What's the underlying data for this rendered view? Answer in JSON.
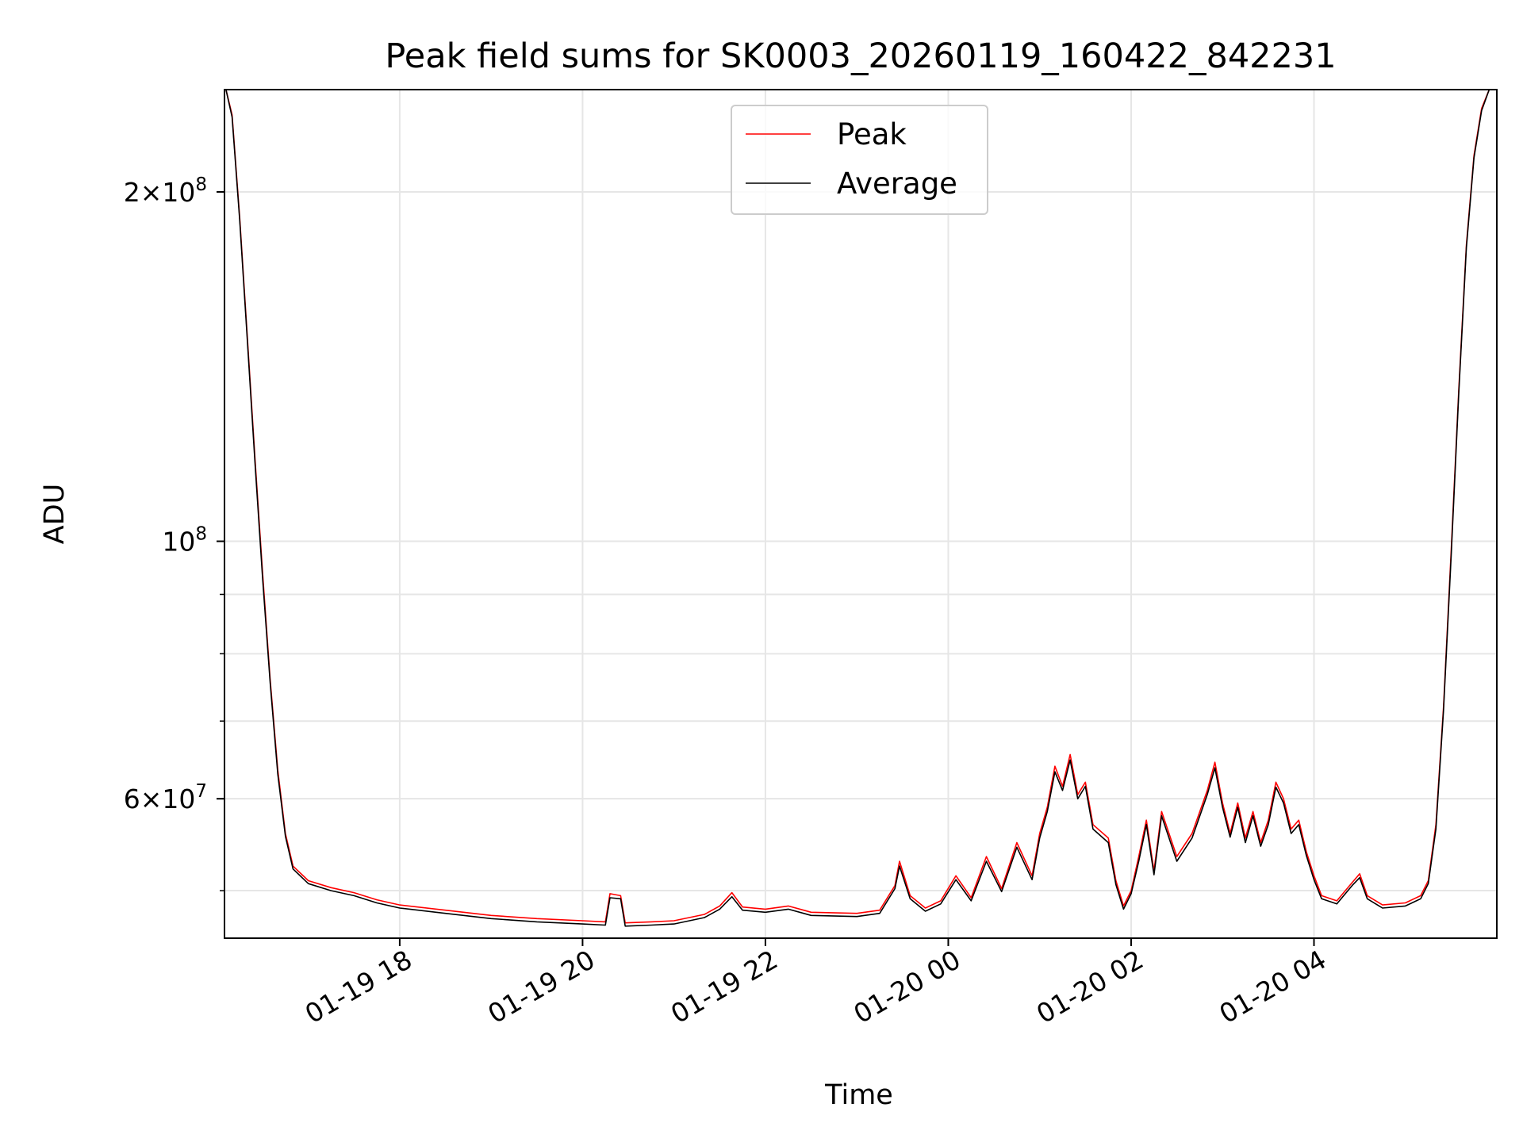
{
  "chart_data": {
    "type": "line",
    "title": "Peak field sums for SK0003_20260119_160422_842231",
    "xlabel": "Time",
    "ylabel": "ADU",
    "yscale": "log",
    "ylim": [
      45500000,
      245000000
    ],
    "xlim": [
      "2026-01-19 16:05",
      "2026-01-20 06:00"
    ],
    "grid": true,
    "legend_position": "upper center",
    "x_ticks": [
      {
        "value": "2026-01-19 18:00",
        "label": "01-19 18"
      },
      {
        "value": "2026-01-19 20:00",
        "label": "01-19 20"
      },
      {
        "value": "2026-01-19 22:00",
        "label": "01-19 22"
      },
      {
        "value": "2026-01-20 00:00",
        "label": "01-20 00"
      },
      {
        "value": "2026-01-20 02:00",
        "label": "01-20 02"
      },
      {
        "value": "2026-01-20 04:00",
        "label": "01-20 04"
      }
    ],
    "y_ticks": [
      {
        "value": 60000000,
        "base": "6",
        "exponent": "7"
      },
      {
        "value": 100000000,
        "base": "",
        "exponent": "8"
      },
      {
        "value": 200000000,
        "base": "2",
        "exponent": "8"
      }
    ],
    "y_minor_ticks": [
      50000000,
      70000000,
      80000000,
      90000000,
      300000000
    ],
    "series": [
      {
        "name": "Peak",
        "color": "#ff0000",
        "points": [
          [
            "2026-01-19 16:06",
            245000000
          ],
          [
            "2026-01-19 16:10",
            233000000
          ],
          [
            "2026-01-19 16:15",
            190000000
          ],
          [
            "2026-01-19 16:20",
            150000000
          ],
          [
            "2026-01-19 16:25",
            118000000
          ],
          [
            "2026-01-19 16:30",
            94000000
          ],
          [
            "2026-01-19 16:35",
            76000000
          ],
          [
            "2026-01-19 16:40",
            63500000
          ],
          [
            "2026-01-19 16:45",
            56000000
          ],
          [
            "2026-01-19 16:50",
            52500000
          ],
          [
            "2026-01-19 17:00",
            51000000
          ],
          [
            "2026-01-19 17:15",
            50300000
          ],
          [
            "2026-01-19 17:30",
            49800000
          ],
          [
            "2026-01-19 17:45",
            49100000
          ],
          [
            "2026-01-19 18:00",
            48600000
          ],
          [
            "2026-01-19 18:30",
            48100000
          ],
          [
            "2026-01-19 19:00",
            47600000
          ],
          [
            "2026-01-19 19:30",
            47300000
          ],
          [
            "2026-01-19 20:00",
            47100000
          ],
          [
            "2026-01-19 20:15",
            47000000
          ],
          [
            "2026-01-19 20:18",
            49700000
          ],
          [
            "2026-01-19 20:25",
            49500000
          ],
          [
            "2026-01-19 20:28",
            46900000
          ],
          [
            "2026-01-19 20:45",
            47000000
          ],
          [
            "2026-01-19 21:00",
            47100000
          ],
          [
            "2026-01-19 21:20",
            47700000
          ],
          [
            "2026-01-19 21:30",
            48500000
          ],
          [
            "2026-01-19 21:38",
            49800000
          ],
          [
            "2026-01-19 21:45",
            48400000
          ],
          [
            "2026-01-19 22:00",
            48200000
          ],
          [
            "2026-01-19 22:15",
            48500000
          ],
          [
            "2026-01-19 22:30",
            47900000
          ],
          [
            "2026-01-19 23:00",
            47800000
          ],
          [
            "2026-01-19 23:15",
            48100000
          ],
          [
            "2026-01-19 23:25",
            50500000
          ],
          [
            "2026-01-19 23:28",
            53000000
          ],
          [
            "2026-01-19 23:35",
            49500000
          ],
          [
            "2026-01-19 23:45",
            48300000
          ],
          [
            "2026-01-19 23:55",
            49000000
          ],
          [
            "2026-01-20 00:05",
            51500000
          ],
          [
            "2026-01-20 00:15",
            49300000
          ],
          [
            "2026-01-20 00:25",
            53500000
          ],
          [
            "2026-01-20 00:35",
            50200000
          ],
          [
            "2026-01-20 00:45",
            55000000
          ],
          [
            "2026-01-20 00:55",
            51500000
          ],
          [
            "2026-01-20 01:00",
            56000000
          ],
          [
            "2026-01-20 01:05",
            59000000
          ],
          [
            "2026-01-20 01:10",
            64000000
          ],
          [
            "2026-01-20 01:15",
            61500000
          ],
          [
            "2026-01-20 01:20",
            65500000
          ],
          [
            "2026-01-20 01:25",
            60500000
          ],
          [
            "2026-01-20 01:30",
            62000000
          ],
          [
            "2026-01-20 01:35",
            57000000
          ],
          [
            "2026-01-20 01:45",
            55500000
          ],
          [
            "2026-01-20 01:50",
            51000000
          ],
          [
            "2026-01-20 01:55",
            48500000
          ],
          [
            "2026-01-20 02:00",
            50000000
          ],
          [
            "2026-01-20 02:05",
            53500000
          ],
          [
            "2026-01-20 02:10",
            57500000
          ],
          [
            "2026-01-20 02:15",
            52000000
          ],
          [
            "2026-01-20 02:20",
            58500000
          ],
          [
            "2026-01-20 02:30",
            53500000
          ],
          [
            "2026-01-20 02:40",
            56000000
          ],
          [
            "2026-01-20 02:50",
            61000000
          ],
          [
            "2026-01-20 02:55",
            64500000
          ],
          [
            "2026-01-20 03:00",
            59500000
          ],
          [
            "2026-01-20 03:05",
            56000000
          ],
          [
            "2026-01-20 03:10",
            59500000
          ],
          [
            "2026-01-20 03:15",
            55500000
          ],
          [
            "2026-01-20 03:20",
            58500000
          ],
          [
            "2026-01-20 03:25",
            55000000
          ],
          [
            "2026-01-20 03:30",
            57500000
          ],
          [
            "2026-01-20 03:35",
            62000000
          ],
          [
            "2026-01-20 03:40",
            60000000
          ],
          [
            "2026-01-20 03:45",
            56500000
          ],
          [
            "2026-01-20 03:50",
            57500000
          ],
          [
            "2026-01-20 03:55",
            54000000
          ],
          [
            "2026-01-20 04:00",
            51500000
          ],
          [
            "2026-01-20 04:05",
            49500000
          ],
          [
            "2026-01-20 04:15",
            49000000
          ],
          [
            "2026-01-20 04:25",
            50800000
          ],
          [
            "2026-01-20 04:30",
            51700000
          ],
          [
            "2026-01-20 04:35",
            49500000
          ],
          [
            "2026-01-20 04:45",
            48600000
          ],
          [
            "2026-01-20 05:00",
            48800000
          ],
          [
            "2026-01-20 05:10",
            49500000
          ],
          [
            "2026-01-20 05:15",
            51000000
          ],
          [
            "2026-01-20 05:20",
            57000000
          ],
          [
            "2026-01-20 05:25",
            72000000
          ],
          [
            "2026-01-20 05:30",
            98000000
          ],
          [
            "2026-01-20 05:35",
            135000000
          ],
          [
            "2026-01-20 05:40",
            180000000
          ],
          [
            "2026-01-20 05:45",
            215000000
          ],
          [
            "2026-01-20 05:50",
            236000000
          ],
          [
            "2026-01-20 05:55",
            245000000
          ]
        ]
      },
      {
        "name": "Average",
        "color": "#000000",
        "points": [
          [
            "2026-01-19 16:06",
            245000000
          ],
          [
            "2026-01-19 16:10",
            232000000
          ],
          [
            "2026-01-19 16:15",
            189000000
          ],
          [
            "2026-01-19 16:20",
            149000000
          ],
          [
            "2026-01-19 16:25",
            117000000
          ],
          [
            "2026-01-19 16:30",
            93000000
          ],
          [
            "2026-01-19 16:35",
            75500000
          ],
          [
            "2026-01-19 16:40",
            63000000
          ],
          [
            "2026-01-19 16:45",
            55700000
          ],
          [
            "2026-01-19 16:50",
            52200000
          ],
          [
            "2026-01-19 17:00",
            50700000
          ],
          [
            "2026-01-19 17:15",
            50000000
          ],
          [
            "2026-01-19 17:30",
            49500000
          ],
          [
            "2026-01-19 17:45",
            48800000
          ],
          [
            "2026-01-19 18:00",
            48300000
          ],
          [
            "2026-01-19 18:30",
            47800000
          ],
          [
            "2026-01-19 19:00",
            47300000
          ],
          [
            "2026-01-19 19:30",
            47000000
          ],
          [
            "2026-01-19 20:00",
            46800000
          ],
          [
            "2026-01-19 20:15",
            46700000
          ],
          [
            "2026-01-19 20:18",
            49300000
          ],
          [
            "2026-01-19 20:25",
            49200000
          ],
          [
            "2026-01-19 20:28",
            46600000
          ],
          [
            "2026-01-19 20:45",
            46700000
          ],
          [
            "2026-01-19 21:00",
            46800000
          ],
          [
            "2026-01-19 21:20",
            47400000
          ],
          [
            "2026-01-19 21:30",
            48200000
          ],
          [
            "2026-01-19 21:38",
            49400000
          ],
          [
            "2026-01-19 21:45",
            48100000
          ],
          [
            "2026-01-19 22:00",
            47900000
          ],
          [
            "2026-01-19 22:15",
            48200000
          ],
          [
            "2026-01-19 22:30",
            47600000
          ],
          [
            "2026-01-19 23:00",
            47500000
          ],
          [
            "2026-01-19 23:15",
            47800000
          ],
          [
            "2026-01-19 23:25",
            50200000
          ],
          [
            "2026-01-19 23:28",
            52500000
          ],
          [
            "2026-01-19 23:35",
            49200000
          ],
          [
            "2026-01-19 23:45",
            48000000
          ],
          [
            "2026-01-19 23:55",
            48700000
          ],
          [
            "2026-01-20 00:05",
            51100000
          ],
          [
            "2026-01-20 00:15",
            49000000
          ],
          [
            "2026-01-20 00:25",
            53000000
          ],
          [
            "2026-01-20 00:35",
            49900000
          ],
          [
            "2026-01-20 00:45",
            54500000
          ],
          [
            "2026-01-20 00:55",
            51100000
          ],
          [
            "2026-01-20 01:00",
            55500000
          ],
          [
            "2026-01-20 01:05",
            58500000
          ],
          [
            "2026-01-20 01:10",
            63300000
          ],
          [
            "2026-01-20 01:15",
            61000000
          ],
          [
            "2026-01-20 01:20",
            64800000
          ],
          [
            "2026-01-20 01:25",
            60000000
          ],
          [
            "2026-01-20 01:30",
            61500000
          ],
          [
            "2026-01-20 01:35",
            56500000
          ],
          [
            "2026-01-20 01:45",
            55000000
          ],
          [
            "2026-01-20 01:50",
            50600000
          ],
          [
            "2026-01-20 01:55",
            48200000
          ],
          [
            "2026-01-20 02:00",
            49700000
          ],
          [
            "2026-01-20 02:05",
            53000000
          ],
          [
            "2026-01-20 02:10",
            57000000
          ],
          [
            "2026-01-20 02:15",
            51600000
          ],
          [
            "2026-01-20 02:20",
            58000000
          ],
          [
            "2026-01-20 02:30",
            53000000
          ],
          [
            "2026-01-20 02:40",
            55500000
          ],
          [
            "2026-01-20 02:50",
            60500000
          ],
          [
            "2026-01-20 02:55",
            63800000
          ],
          [
            "2026-01-20 03:00",
            59000000
          ],
          [
            "2026-01-20 03:05",
            55600000
          ],
          [
            "2026-01-20 03:10",
            59000000
          ],
          [
            "2026-01-20 03:15",
            55000000
          ],
          [
            "2026-01-20 03:20",
            58000000
          ],
          [
            "2026-01-20 03:25",
            54600000
          ],
          [
            "2026-01-20 03:30",
            57000000
          ],
          [
            "2026-01-20 03:35",
            61400000
          ],
          [
            "2026-01-20 03:40",
            59500000
          ],
          [
            "2026-01-20 03:45",
            56000000
          ],
          [
            "2026-01-20 03:50",
            57000000
          ],
          [
            "2026-01-20 03:55",
            53600000
          ],
          [
            "2026-01-20 04:00",
            51100000
          ],
          [
            "2026-01-20 04:05",
            49200000
          ],
          [
            "2026-01-20 04:15",
            48700000
          ],
          [
            "2026-01-20 04:25",
            50500000
          ],
          [
            "2026-01-20 04:30",
            51300000
          ],
          [
            "2026-01-20 04:35",
            49200000
          ],
          [
            "2026-01-20 04:45",
            48300000
          ],
          [
            "2026-01-20 05:00",
            48500000
          ],
          [
            "2026-01-20 05:10",
            49200000
          ],
          [
            "2026-01-20 05:15",
            50700000
          ],
          [
            "2026-01-20 05:20",
            56500000
          ],
          [
            "2026-01-20 05:25",
            71500000
          ],
          [
            "2026-01-20 05:30",
            97000000
          ],
          [
            "2026-01-20 05:35",
            134000000
          ],
          [
            "2026-01-20 05:40",
            179000000
          ],
          [
            "2026-01-20 05:45",
            214000000
          ],
          [
            "2026-01-20 05:50",
            235000000
          ],
          [
            "2026-01-20 05:55",
            245000000
          ]
        ]
      }
    ]
  }
}
